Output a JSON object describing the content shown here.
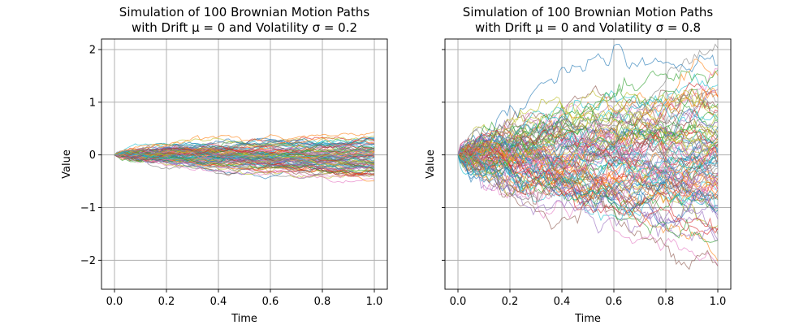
{
  "chart_data": [
    {
      "type": "line",
      "title_line1": "Simulation of 100 Brownian Motion Paths",
      "title_line2": "with Drift μ = 0 and Volatility σ = 0.2",
      "xlabel": "Time",
      "ylabel": "Value",
      "xlim": [
        -0.05,
        1.05
      ],
      "ylim": [
        -2.55,
        2.2
      ],
      "x_ticks": [
        0.0,
        0.2,
        0.4,
        0.6,
        0.8,
        1.0
      ],
      "x_tick_labels": [
        "0.0",
        "0.2",
        "0.4",
        "0.6",
        "0.8",
        "1.0"
      ],
      "y_ticks": [
        -2,
        -1,
        0,
        1,
        2
      ],
      "y_tick_labels": [
        "−2",
        "−1",
        "0",
        "1",
        "2"
      ],
      "show_y_tick_labels": true,
      "grid": true,
      "n_paths": 100,
      "n_steps": 100,
      "drift": 0,
      "volatility": 0.2,
      "seed": 7
    },
    {
      "type": "line",
      "title_line1": "Simulation of 100 Brownian Motion Paths",
      "title_line2": "with Drift μ = 0 and Volatility σ = 0.8",
      "xlabel": "Time",
      "ylabel": "Value",
      "xlim": [
        -0.05,
        1.05
      ],
      "ylim": [
        -2.55,
        2.2
      ],
      "x_ticks": [
        0.0,
        0.2,
        0.4,
        0.6,
        0.8,
        1.0
      ],
      "x_tick_labels": [
        "0.0",
        "0.2",
        "0.4",
        "0.6",
        "0.8",
        "1.0"
      ],
      "y_ticks": [
        -2,
        -1,
        0,
        1,
        2
      ],
      "y_tick_labels": [
        "−2",
        "−1",
        "0",
        "1",
        "2"
      ],
      "show_y_tick_labels": false,
      "grid": true,
      "n_paths": 100,
      "n_steps": 100,
      "drift": 0,
      "volatility": 0.8,
      "seed": 11
    }
  ],
  "palette": [
    "#1f77b4",
    "#ff7f0e",
    "#2ca02c",
    "#d62728",
    "#9467bd",
    "#8c564b",
    "#e377c2",
    "#7f7f7f",
    "#bcbd22",
    "#17becf"
  ]
}
